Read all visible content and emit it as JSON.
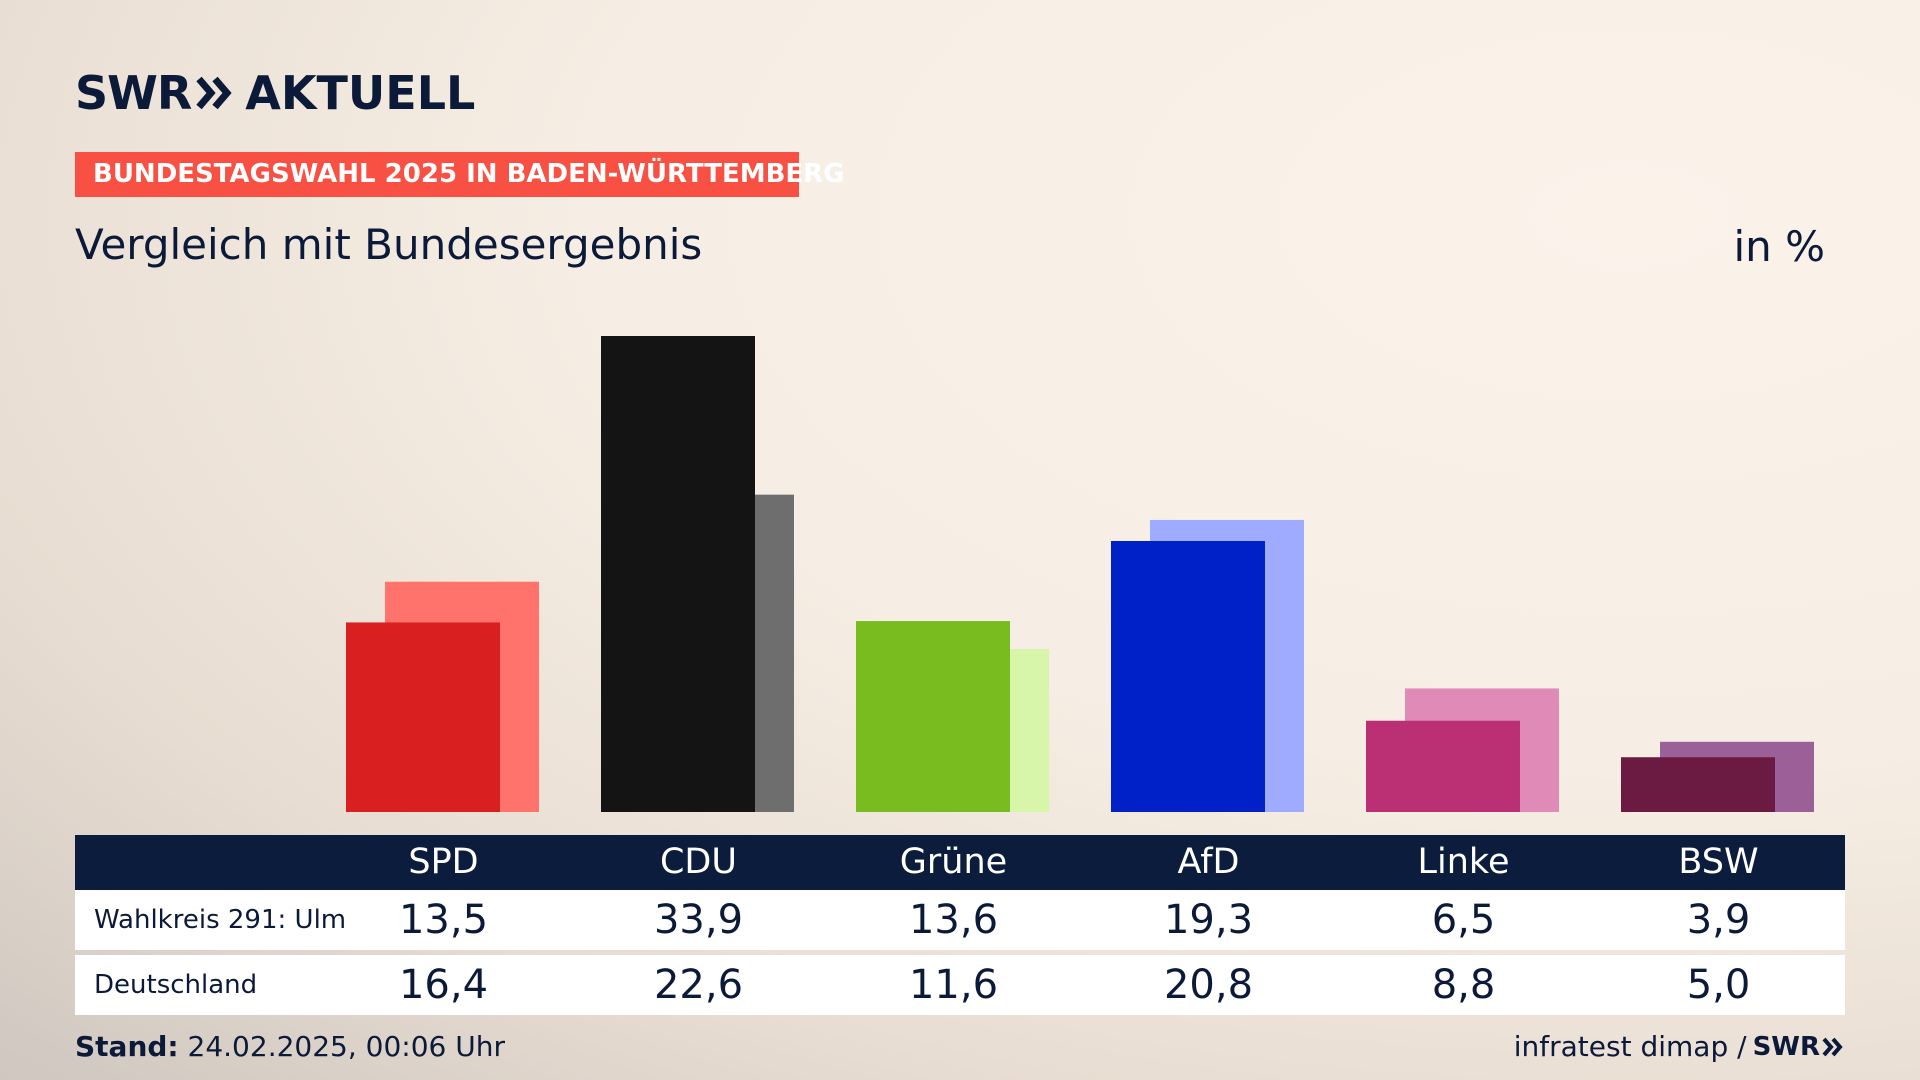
{
  "header": {
    "logo_swr": "SWR",
    "logo_text": "AKTUELL",
    "ribbon": "BUNDESTAGSWAHL 2025 IN BADEN-WÜRTTEMBERG",
    "subtitle": "Vergleich mit Bundesergebnis",
    "unit": "in %"
  },
  "table": {
    "row_labels": [
      "Wahlkreis 291: Ulm",
      "Deutschland"
    ]
  },
  "footer": {
    "stand_label": "Stand:",
    "stand_value": "24.02.2025, 00:06 Uhr",
    "source": "infratest dimap /",
    "source_logo": "SWR"
  },
  "chart_data": {
    "type": "bar",
    "categories": [
      "SPD",
      "CDU",
      "Grüne",
      "AfD",
      "Linke",
      "BSW"
    ],
    "series": [
      {
        "name": "Wahlkreis 291: Ulm",
        "values": [
          13.5,
          33.9,
          13.6,
          19.3,
          6.5,
          3.9
        ],
        "colors": [
          "#d91f20",
          "#141414",
          "#79bc1f",
          "#0021c8",
          "#bb2f75",
          "#6b1a41"
        ]
      },
      {
        "name": "Deutschland",
        "values": [
          16.4,
          22.6,
          11.6,
          20.8,
          8.8,
          5.0
        ],
        "colors": [
          "#ff736c",
          "#6e6e6e",
          "#d7f6aa",
          "#9eabff",
          "#e08bb7",
          "#9c6098"
        ]
      }
    ],
    "ylim": [
      0,
      33.9
    ],
    "data_labels": {
      "Wahlkreis 291: Ulm": [
        "13,5",
        "33,9",
        "13,6",
        "19,3",
        "6,5",
        "3,9"
      ],
      "Deutschland": [
        "16,4",
        "22,6",
        "11,6",
        "20,8",
        "8,8",
        "5,0"
      ]
    }
  }
}
